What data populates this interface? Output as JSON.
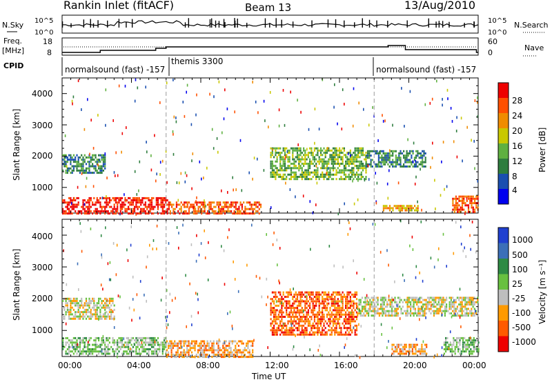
{
  "header": {
    "title": "Rankin Inlet (fitACF)",
    "beam": "Beam 13",
    "date": "13/Aug/2010"
  },
  "top_panels": {
    "nsky": {
      "label": "N.Sky",
      "ticks": [
        "10^5",
        "10^0"
      ],
      "right_ticks": [
        "10^5",
        "10^0"
      ],
      "right_label": "N.Search"
    },
    "freq": {
      "label_line1": "Freq.",
      "label_line2": "[MHz]",
      "ticks": [
        "18",
        "8"
      ],
      "right_ticks": [
        "60",
        "0"
      ],
      "right_label": "Nave"
    },
    "cpid": {
      "label": "CPID",
      "segments": [
        {
          "text": "normalsound (fast) -157",
          "start_h": 0,
          "end_h": 6
        },
        {
          "text": "themis 3300",
          "start_h": 6,
          "end_h": 18
        },
        {
          "text": "normalsound (fast) -157",
          "start_h": 18,
          "end_h": 24
        }
      ]
    }
  },
  "axes": {
    "ylabel": "Slant Range [km]",
    "xlabel": "Time UT",
    "yticks": [
      "1000",
      "2000",
      "3000",
      "4000"
    ],
    "xticks": [
      "00:00",
      "04:00",
      "08:00",
      "12:00",
      "16:00",
      "20:00",
      "00:00"
    ]
  },
  "power_scale": {
    "label": "Power [dB]",
    "ticks": [
      "28",
      "24",
      "20",
      "16",
      "12",
      "8",
      "4"
    ],
    "colors": [
      "#0000ee",
      "#1a4fb0",
      "#2e7d3e",
      "#5fb040",
      "#c9c800",
      "#f08c00",
      "#ff5000",
      "#ee0000"
    ]
  },
  "velocity_scale": {
    "label": "Velocity [m s⁻¹]",
    "ticks": [
      "1000",
      "500",
      "100",
      "25",
      "-25",
      "-100",
      "-500",
      "-1000"
    ],
    "colors": [
      "#2040d0",
      "#3b6fb8",
      "#2e8a44",
      "#68c040",
      "#bebebe",
      "#ff9a00",
      "#ff5a00",
      "#ee0000"
    ]
  },
  "chart_data": {
    "type": "heatmap",
    "title": "Rankin Inlet (fitACF)",
    "xlabel": "Time UT",
    "ylabel": "Slant Range [km]",
    "xlim_hours": [
      0,
      24
    ],
    "ylim_km": [
      180,
      4500
    ],
    "power_regions": [
      {
        "t0": 0.0,
        "t1": 6.2,
        "r0": 200,
        "r1": 750,
        "level": 7
      },
      {
        "t0": 6.2,
        "t1": 11.5,
        "r0": 200,
        "r1": 600,
        "level": 6
      },
      {
        "t0": 0.0,
        "t1": 2.5,
        "r0": 1500,
        "r1": 2100,
        "level": 2
      },
      {
        "t0": 12.0,
        "t1": 17.5,
        "r0": 1300,
        "r1": 2300,
        "level": 3
      },
      {
        "t0": 17.5,
        "t1": 21.0,
        "r0": 1700,
        "r1": 2200,
        "level": 2
      },
      {
        "t0": 18.5,
        "t1": 20.5,
        "r0": 300,
        "r1": 500,
        "level": 5
      },
      {
        "t0": 22.5,
        "t1": 24.0,
        "r0": 250,
        "r1": 800,
        "level": 6
      }
    ],
    "velocity_regions": [
      {
        "t0": 0.0,
        "t1": 3.0,
        "r0": 1400,
        "r1": 2100,
        "level": 4
      },
      {
        "t0": 0.0,
        "t1": 6.0,
        "r0": 300,
        "r1": 800,
        "level": 3
      },
      {
        "t0": 6.0,
        "t1": 11.0,
        "r0": 200,
        "r1": 700,
        "level": 5
      },
      {
        "t0": 12.0,
        "t1": 17.0,
        "r0": 900,
        "r1": 2300,
        "level": 6
      },
      {
        "t0": 17.0,
        "t1": 24.0,
        "r0": 1500,
        "r1": 2100,
        "level": 4
      },
      {
        "t0": 19.0,
        "t1": 21.0,
        "r0": 300,
        "r1": 600,
        "level": 5
      },
      {
        "t0": 22.0,
        "t1": 24.0,
        "r0": 300,
        "r1": 800,
        "level": 3
      }
    ]
  }
}
